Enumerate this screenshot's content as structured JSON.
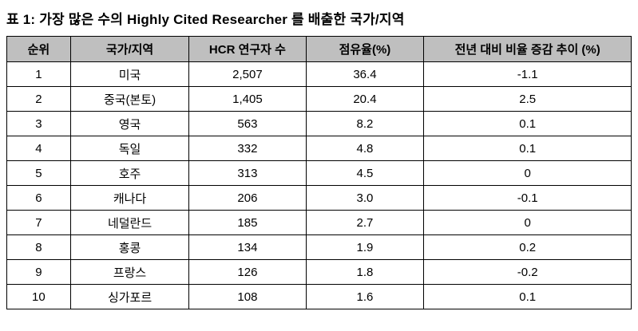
{
  "title": "표 1: 가장 많은 수의 Highly Cited Researcher 를 배출한 국가/지역",
  "table": {
    "header_bg": "#bfbfbf",
    "columns": {
      "rank": "순위",
      "country": "국가/지역",
      "hcr_count": "HCR 연구자 수",
      "share": "점유율(%)",
      "yoy_change": "전년 대비 비율 증감 추이 (%)"
    },
    "rows": [
      {
        "rank": "1",
        "country": "미국",
        "hcr_count": "2,507",
        "share": "36.4",
        "yoy_change": "-1.1"
      },
      {
        "rank": "2",
        "country": "중국(본토)",
        "hcr_count": "1,405",
        "share": "20.4",
        "yoy_change": "2.5"
      },
      {
        "rank": "3",
        "country": "영국",
        "hcr_count": "563",
        "share": "8.2",
        "yoy_change": "0.1"
      },
      {
        "rank": "4",
        "country": "독일",
        "hcr_count": "332",
        "share": "4.8",
        "yoy_change": "0.1"
      },
      {
        "rank": "5",
        "country": "호주",
        "hcr_count": "313",
        "share": "4.5",
        "yoy_change": "0"
      },
      {
        "rank": "6",
        "country": "캐나다",
        "hcr_count": "206",
        "share": "3.0",
        "yoy_change": "-0.1"
      },
      {
        "rank": "7",
        "country": "네덜란드",
        "hcr_count": "185",
        "share": "2.7",
        "yoy_change": "0"
      },
      {
        "rank": "8",
        "country": "홍콩",
        "hcr_count": "134",
        "share": "1.9",
        "yoy_change": "0.2"
      },
      {
        "rank": "9",
        "country": "프랑스",
        "hcr_count": "126",
        "share": "1.8",
        "yoy_change": "-0.2"
      },
      {
        "rank": "10",
        "country": "싱가포르",
        "hcr_count": "108",
        "share": "1.6",
        "yoy_change": "0.1"
      }
    ]
  }
}
